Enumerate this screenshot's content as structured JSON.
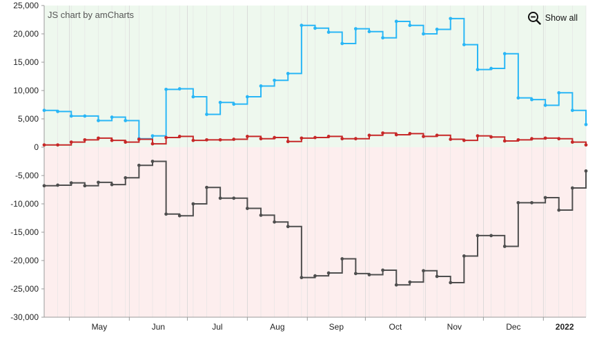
{
  "credit_label": "JS chart by amCharts",
  "show_all_label": "Show all",
  "colors": {
    "series_blue": "#29b6f6",
    "series_red": "#c62828",
    "series_dark": "#4e4e4e",
    "positive_band": "#eef8ee",
    "negative_band": "#fdeeee"
  },
  "chart_data": {
    "type": "line",
    "step": true,
    "x_start": "2021-04-18",
    "x_step_days": 7,
    "ylim": [
      -30000,
      25000
    ],
    "y_ticks": [
      25000,
      20000,
      15000,
      10000,
      5000,
      0,
      -5000,
      -10000,
      -15000,
      -20000,
      -25000,
      -30000
    ],
    "y_tick_labels": [
      "25,000",
      "20,000",
      "15,000",
      "10,000",
      "5,000",
      "0",
      "-5,000",
      "-10,000",
      "-15,000",
      "-20,000",
      "-25,000",
      "-30,000"
    ],
    "x_labels": [
      {
        "label": "May",
        "date": "2021-05-01",
        "bold": false
      },
      {
        "label": "Jun",
        "date": "2021-06-01",
        "bold": false
      },
      {
        "label": "Jul",
        "date": "2021-07-01",
        "bold": false
      },
      {
        "label": "Aug",
        "date": "2021-08-01",
        "bold": false
      },
      {
        "label": "Sep",
        "date": "2021-09-01",
        "bold": false
      },
      {
        "label": "Oct",
        "date": "2021-10-01",
        "bold": false
      },
      {
        "label": "Nov",
        "date": "2021-11-01",
        "bold": false
      },
      {
        "label": "Dec",
        "date": "2021-12-01",
        "bold": false
      },
      {
        "label": "2022",
        "date": "2022-01-01",
        "bold": true
      }
    ],
    "series": [
      {
        "values": [
          6500,
          6300,
          5500,
          5500,
          4700,
          5300,
          4700,
          1500,
          2000,
          10200,
          10300,
          8900,
          5800,
          7900,
          7600,
          8900,
          10800,
          11800,
          13000,
          21500,
          21000,
          20300,
          18300,
          20900,
          20400,
          19300,
          22200,
          21500,
          20000,
          20800,
          22700,
          18100,
          13700,
          13900,
          16500,
          8700,
          8400,
          7400,
          9600,
          6500,
          4000
        ]
      },
      {
        "values": [
          400,
          400,
          900,
          1300,
          1600,
          1200,
          900,
          1400,
          600,
          1700,
          1900,
          1200,
          1300,
          1300,
          1400,
          1900,
          1500,
          1700,
          1000,
          1600,
          1700,
          1900,
          1500,
          1500,
          2100,
          2500,
          2200,
          2400,
          1900,
          2100,
          1400,
          1200,
          2000,
          1800,
          1100,
          1300,
          1500,
          1600,
          1500,
          900,
          400
        ]
      },
      {
        "values": [
          -6800,
          -6700,
          -6300,
          -6800,
          -6200,
          -6600,
          -5400,
          -3200,
          -2500,
          -11800,
          -12100,
          -10000,
          -7100,
          -9000,
          -9000,
          -10800,
          -12000,
          -13200,
          -14000,
          -23000,
          -22700,
          -22200,
          -19700,
          -22300,
          -22500,
          -21700,
          -24300,
          -23800,
          -21800,
          -22800,
          -23900,
          -19200,
          -15600,
          -15600,
          -17500,
          -9800,
          -9800,
          -8900,
          -11100,
          -7200,
          -4200
        ]
      }
    ]
  }
}
